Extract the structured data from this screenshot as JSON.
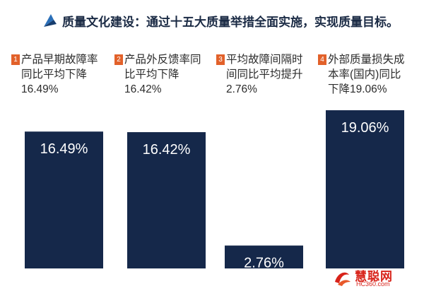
{
  "header": {
    "title": "质量文化建设：通过十五大质量举措全面实施，实现质量目标。",
    "icon": "pen-nib-icon"
  },
  "chart_data": {
    "type": "bar",
    "title": "",
    "xlabel": "",
    "ylabel": "",
    "ylim": [
      0,
      20
    ],
    "categories": [
      "产品早期故障率同比平均下降16.49%",
      "产品外反馈率同比平均下降16.42%",
      "平均故障间隔时间同比平均提升2.76%",
      "外部质量损失成本率(国内)同比下降19.06%"
    ],
    "category_numbers": [
      "1",
      "2",
      "3",
      "4"
    ],
    "values": [
      16.49,
      16.42,
      2.76,
      19.06
    ],
    "value_labels": [
      "16.49%",
      "16.42%",
      "2.76%",
      "19.06%"
    ],
    "grid": false,
    "legend": "none"
  },
  "colors": {
    "bar": "#15284a",
    "badge": "#e2612a",
    "title": "#1a2a44",
    "watermark": "#d8231a"
  },
  "watermark": {
    "name": "慧聪网",
    "url": "HC360.com"
  }
}
